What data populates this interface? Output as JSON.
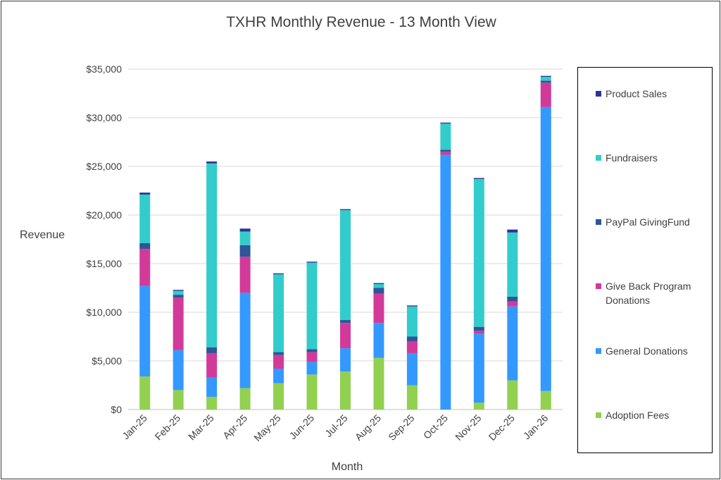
{
  "chart_data": {
    "type": "bar",
    "stacked": true,
    "title": "TXHR Monthly Revenue - 13 Month View",
    "xlabel": "Month",
    "ylabel": "Revenue",
    "ylim": [
      0,
      35000
    ],
    "yticks": [
      0,
      5000,
      10000,
      15000,
      20000,
      25000,
      30000,
      35000
    ],
    "ytick_labels": [
      "$0",
      "$5,000",
      "$10,000",
      "$15,000",
      "$20,000",
      "$25,000",
      "$30,000",
      "$35,000"
    ],
    "grid": true,
    "legend_position": "right",
    "categories": [
      "Jan-25",
      "Feb-25",
      "Mar-25",
      "Apr-25",
      "May-25",
      "Jun-25",
      "Jul-25",
      "Aug-25",
      "Sep-25",
      "Oct-25",
      "Nov-25",
      "Dec-25",
      "Jan-26"
    ],
    "series": [
      {
        "name": "Adoption Fees",
        "color": "#92d050",
        "values": [
          3400,
          2000,
          1300,
          2200,
          2700,
          3600,
          3900,
          5300,
          2500,
          0,
          700,
          3000,
          1900
        ]
      },
      {
        "name": "General Donations",
        "color": "#3399ff",
        "values": [
          9300,
          4100,
          2000,
          9800,
          1500,
          1300,
          2400,
          3600,
          3300,
          26200,
          7100,
          7600,
          29200
        ]
      },
      {
        "name": "Give Back Program Donations",
        "color": "#d23a9a",
        "values": [
          3800,
          5400,
          2500,
          3700,
          1400,
          1000,
          2600,
          3000,
          1200,
          300,
          300,
          500,
          2500
        ]
      },
      {
        "name": "PayPal GivingFund",
        "color": "#2f5597",
        "values": [
          600,
          300,
          600,
          1200,
          300,
          300,
          300,
          600,
          500,
          200,
          400,
          500,
          200
        ]
      },
      {
        "name": "Fundraisers",
        "color": "#33cccc",
        "values": [
          5000,
          400,
          18900,
          1400,
          8000,
          8900,
          11300,
          400,
          3100,
          2700,
          15200,
          6600,
          400
        ]
      },
      {
        "name": "Product Sales",
        "color": "#283593",
        "values": [
          200,
          100,
          200,
          300,
          100,
          100,
          100,
          100,
          100,
          100,
          100,
          300,
          100
        ]
      }
    ]
  }
}
